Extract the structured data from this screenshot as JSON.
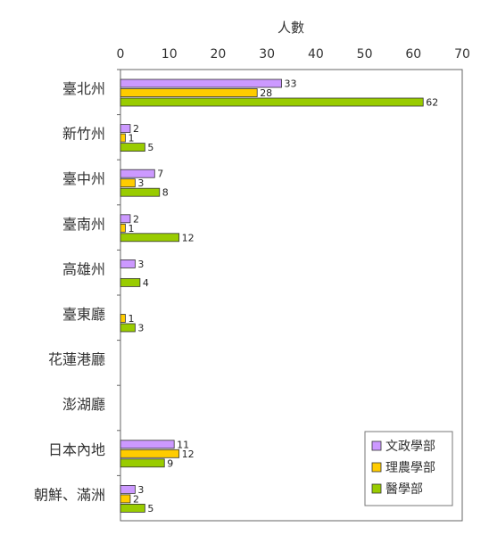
{
  "chart_data": {
    "type": "bar",
    "orientation": "horizontal",
    "xlabel": "人數",
    "xlim": [
      0,
      70
    ],
    "xticks": [
      0,
      10,
      20,
      30,
      40,
      50,
      60,
      70
    ],
    "grid": false,
    "legend_position": "bottom-right",
    "categories": [
      "臺北州",
      "新竹州",
      "臺中州",
      "臺南州",
      "高雄州",
      "臺東廳",
      "花蓮港廳",
      "澎湖廳",
      "日本內地",
      "朝鮮、滿洲"
    ],
    "series": [
      {
        "name": "文政學部",
        "color": "#cc99ff",
        "values": [
          33,
          2,
          7,
          2,
          3,
          null,
          null,
          null,
          11,
          3
        ]
      },
      {
        "name": "理農學部",
        "color": "#ffcc00",
        "values": [
          28,
          1,
          3,
          1,
          null,
          1,
          null,
          null,
          12,
          2
        ]
      },
      {
        "name": "醫學部",
        "color": "#99cc00",
        "values": [
          62,
          5,
          8,
          12,
          4,
          3,
          null,
          null,
          9,
          5
        ]
      }
    ]
  }
}
